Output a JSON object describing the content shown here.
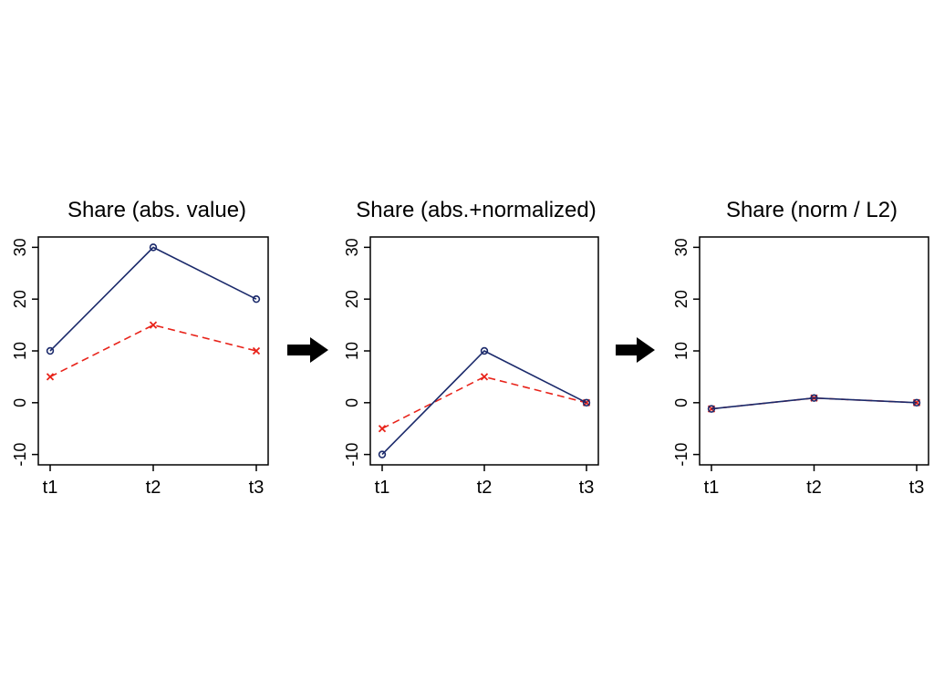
{
  "colors": {
    "series_a": "#1b2a6b",
    "series_b": "#e8231a",
    "axis": "#000000",
    "arrow": "#000000",
    "background": "#ffffff"
  },
  "chart_data": [
    {
      "type": "line",
      "title": "Share (abs. value)",
      "categories": [
        "t1",
        "t2",
        "t3"
      ],
      "series": [
        {
          "values": [
            10,
            30,
            20
          ],
          "marker": "circle",
          "line": "solid",
          "color": "#1b2a6b"
        },
        {
          "values": [
            5,
            15,
            10
          ],
          "marker": "x",
          "line": "dashed",
          "color": "#e8231a"
        }
      ],
      "yticks": [
        -10,
        0,
        10,
        20,
        30
      ],
      "ylim": [
        -12,
        32
      ],
      "grid": false
    },
    {
      "type": "line",
      "title": "Share (abs.+normalized)",
      "categories": [
        "t1",
        "t2",
        "t3"
      ],
      "series": [
        {
          "values": [
            -10,
            10,
            0
          ],
          "marker": "circle",
          "line": "solid",
          "color": "#1b2a6b"
        },
        {
          "values": [
            -5,
            5,
            0
          ],
          "marker": "x",
          "line": "dashed",
          "color": "#e8231a"
        }
      ],
      "yticks": [
        -10,
        0,
        10,
        20,
        30
      ],
      "ylim": [
        -12,
        32
      ],
      "grid": false
    },
    {
      "type": "line",
      "title": "Share (norm / L2)",
      "categories": [
        "t1",
        "t2",
        "t3"
      ],
      "series": [
        {
          "values": [
            -1.2,
            0.9,
            0
          ],
          "marker": "circle",
          "line": "solid",
          "color": "#1b2a6b"
        },
        {
          "values": [
            -1.2,
            0.9,
            0
          ],
          "marker": "x",
          "line": "dashed",
          "color": "#e8231a"
        }
      ],
      "yticks": [
        -10,
        0,
        10,
        20,
        30
      ],
      "ylim": [
        -12,
        32
      ],
      "grid": false
    }
  ]
}
